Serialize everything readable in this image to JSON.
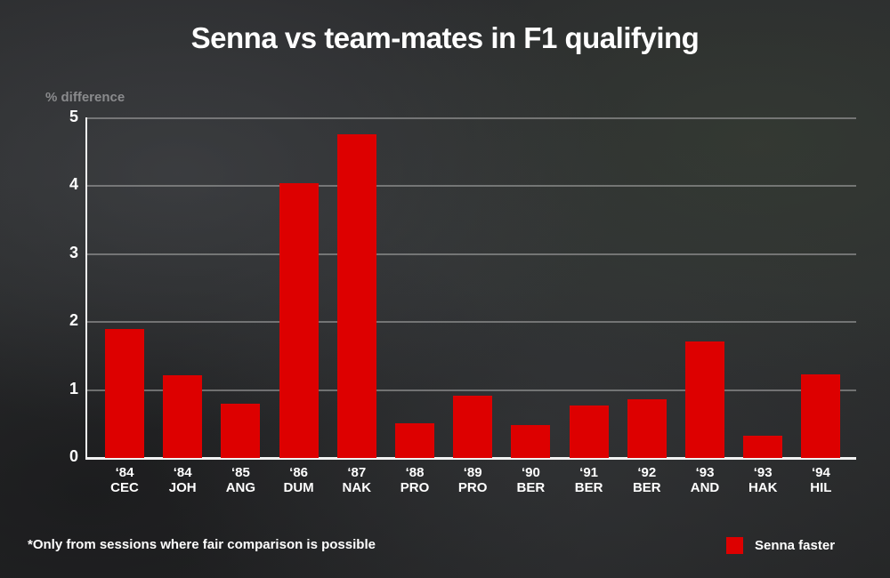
{
  "title": "Senna vs team-mates in F1 qualifying",
  "y_axis_label": "% difference",
  "footnote": "*Only from sessions where fair comparison is possible",
  "legend": {
    "label": "Senna faster",
    "color": "#dd0000"
  },
  "colors": {
    "bar": "#dd0000",
    "background": "#2b2c2e",
    "axis": "#f2f2f2",
    "grid": "#9a9a9a"
  },
  "chart_data": {
    "type": "bar",
    "title": "Senna vs team-mates in F1 qualifying",
    "xlabel": "",
    "ylabel": "% difference",
    "ylim": [
      0,
      5
    ],
    "yticks": [
      0,
      1,
      2,
      3,
      4,
      5
    ],
    "grid": true,
    "legend_position": "bottom-right",
    "categories": [
      "'84 CEC",
      "'84 JOH",
      "'85 ANG",
      "'86 DUM",
      "'87 NAK",
      "'88 PRO",
      "'89 PRO",
      "'90 BER",
      "'91 BER",
      "'92 BER",
      "'93 AND",
      "'93 HAK",
      "'94 HIL"
    ],
    "category_years": [
      "‘84",
      "‘84",
      "‘85",
      "‘86",
      "‘87",
      "‘88",
      "‘89",
      "‘90",
      "‘91",
      "‘92",
      "‘93",
      "‘93",
      "‘94"
    ],
    "category_names": [
      "CEC",
      "JOH",
      "ANG",
      "DUM",
      "NAK",
      "PRO",
      "PRO",
      "BER",
      "BER",
      "BER",
      "AND",
      "HAK",
      "HIL"
    ],
    "series": [
      {
        "name": "Senna faster",
        "values": [
          1.9,
          1.22,
          0.8,
          4.05,
          4.76,
          0.51,
          0.92,
          0.48,
          0.77,
          0.86,
          1.72,
          0.33,
          1.23
        ]
      }
    ],
    "annotations": [
      "*Only from sessions where fair comparison is possible"
    ]
  }
}
